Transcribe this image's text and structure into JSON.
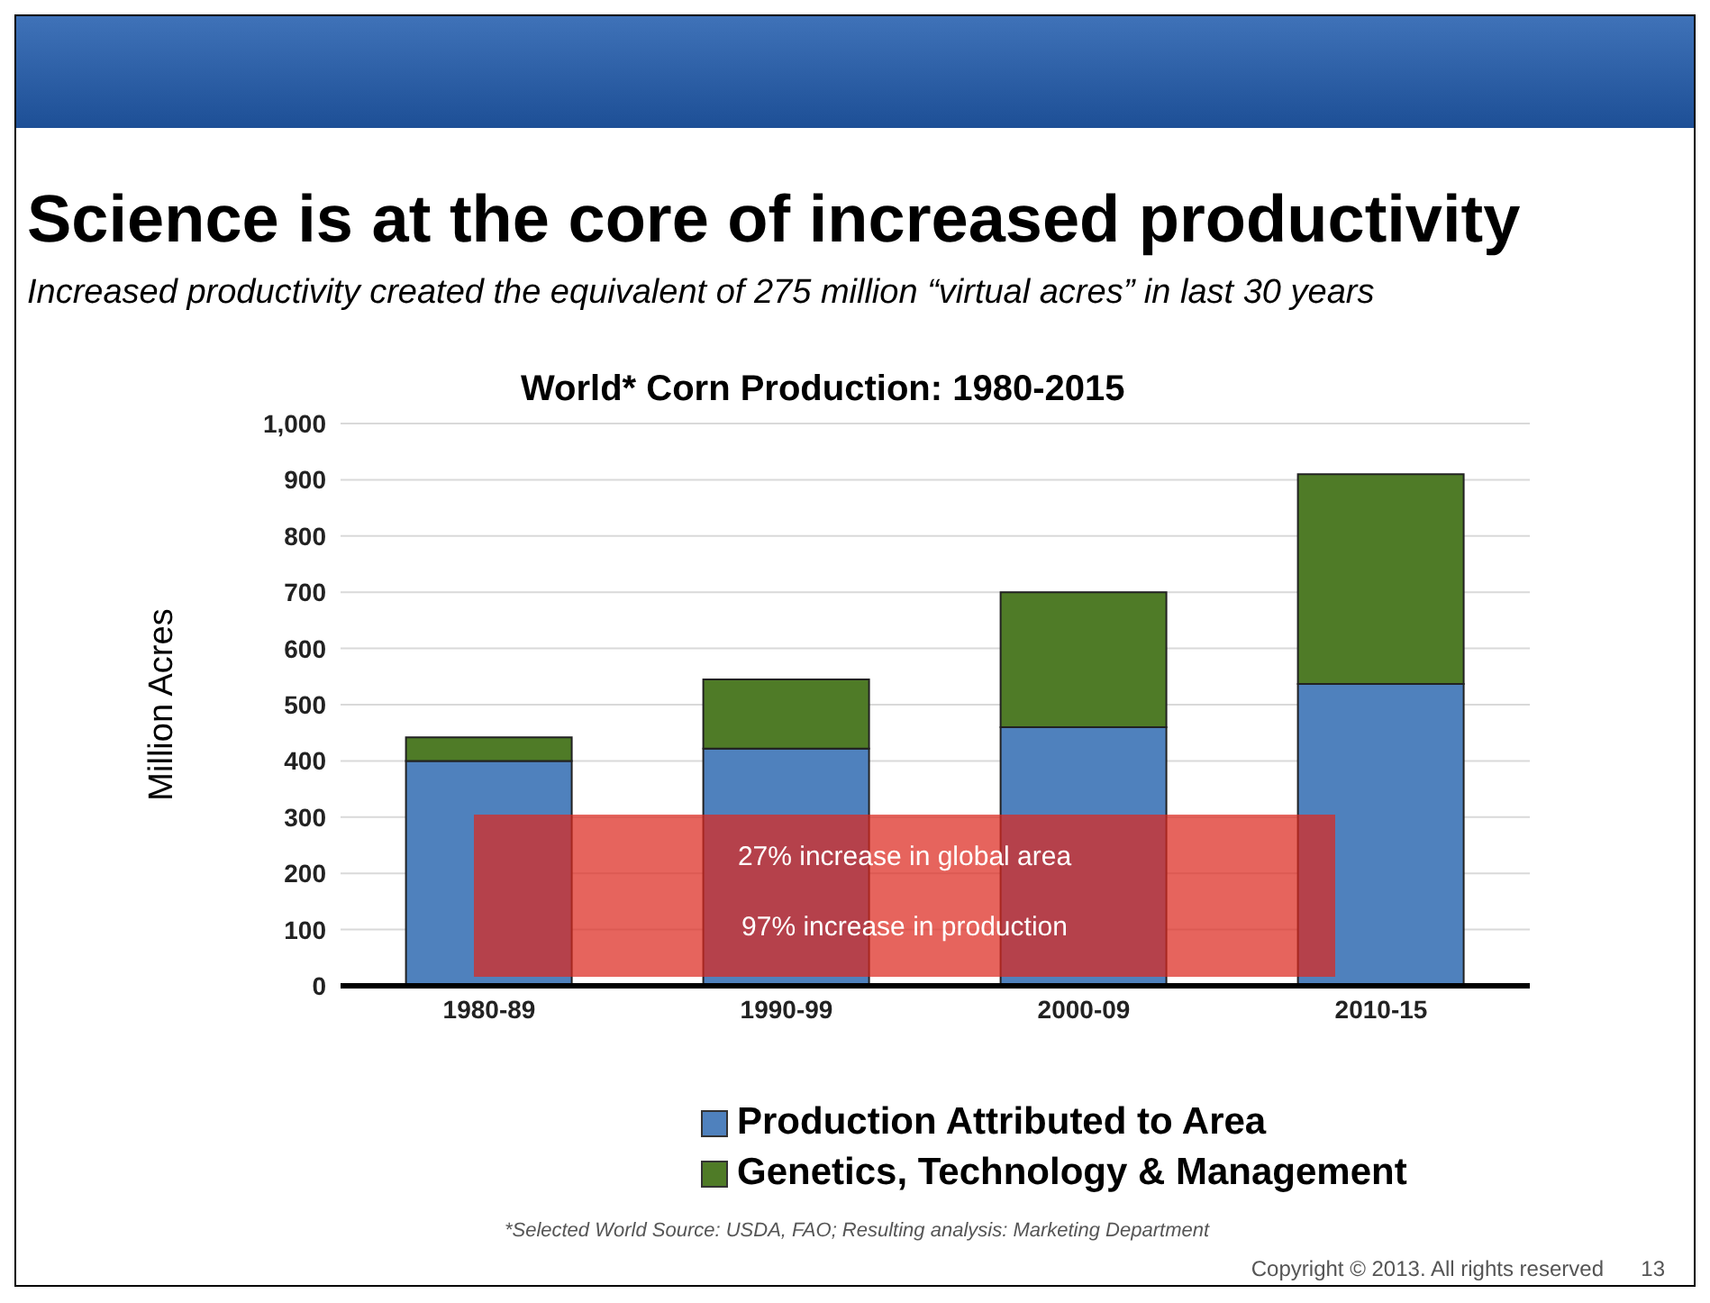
{
  "chart_data": {
    "type": "bar",
    "title": "Science is at the core of increased productivity",
    "subtitle": "Increased productivity created the equivalent of 275 million “virtual acres” in last 30 years",
    "ylabel": "Million Acres",
    "categories": [
      "1980-89",
      "1990-99",
      "2000-09",
      "2010-15"
    ],
    "stacked": true,
    "series": [
      {
        "name": "Production Attributed to Area",
        "color": "#4f81bd",
        "values": [
          400,
          422,
          460,
          537
        ]
      },
      {
        "name": "Genetics, Technology & Management",
        "color": "#4f7b27",
        "values": [
          42,
          123,
          240,
          373
        ]
      }
    ],
    "ylim": [
      0,
      1000
    ],
    "yticks": [
      0,
      100,
      200,
      300,
      400,
      500,
      600,
      700,
      800,
      900,
      {
        "value": 1000,
        "label": "1,000"
      }
    ],
    "grid": "y",
    "legend": "bottom",
    "annotations": [
      "World* Corn Production: 1980-2015",
      "27% increase in global area",
      "97% increase in production",
      "*Selected World Source: USDA, FAO; Resulting analysis: Marketing Department",
      "Copyright © 2013. All rights reserved",
      "13"
    ]
  }
}
